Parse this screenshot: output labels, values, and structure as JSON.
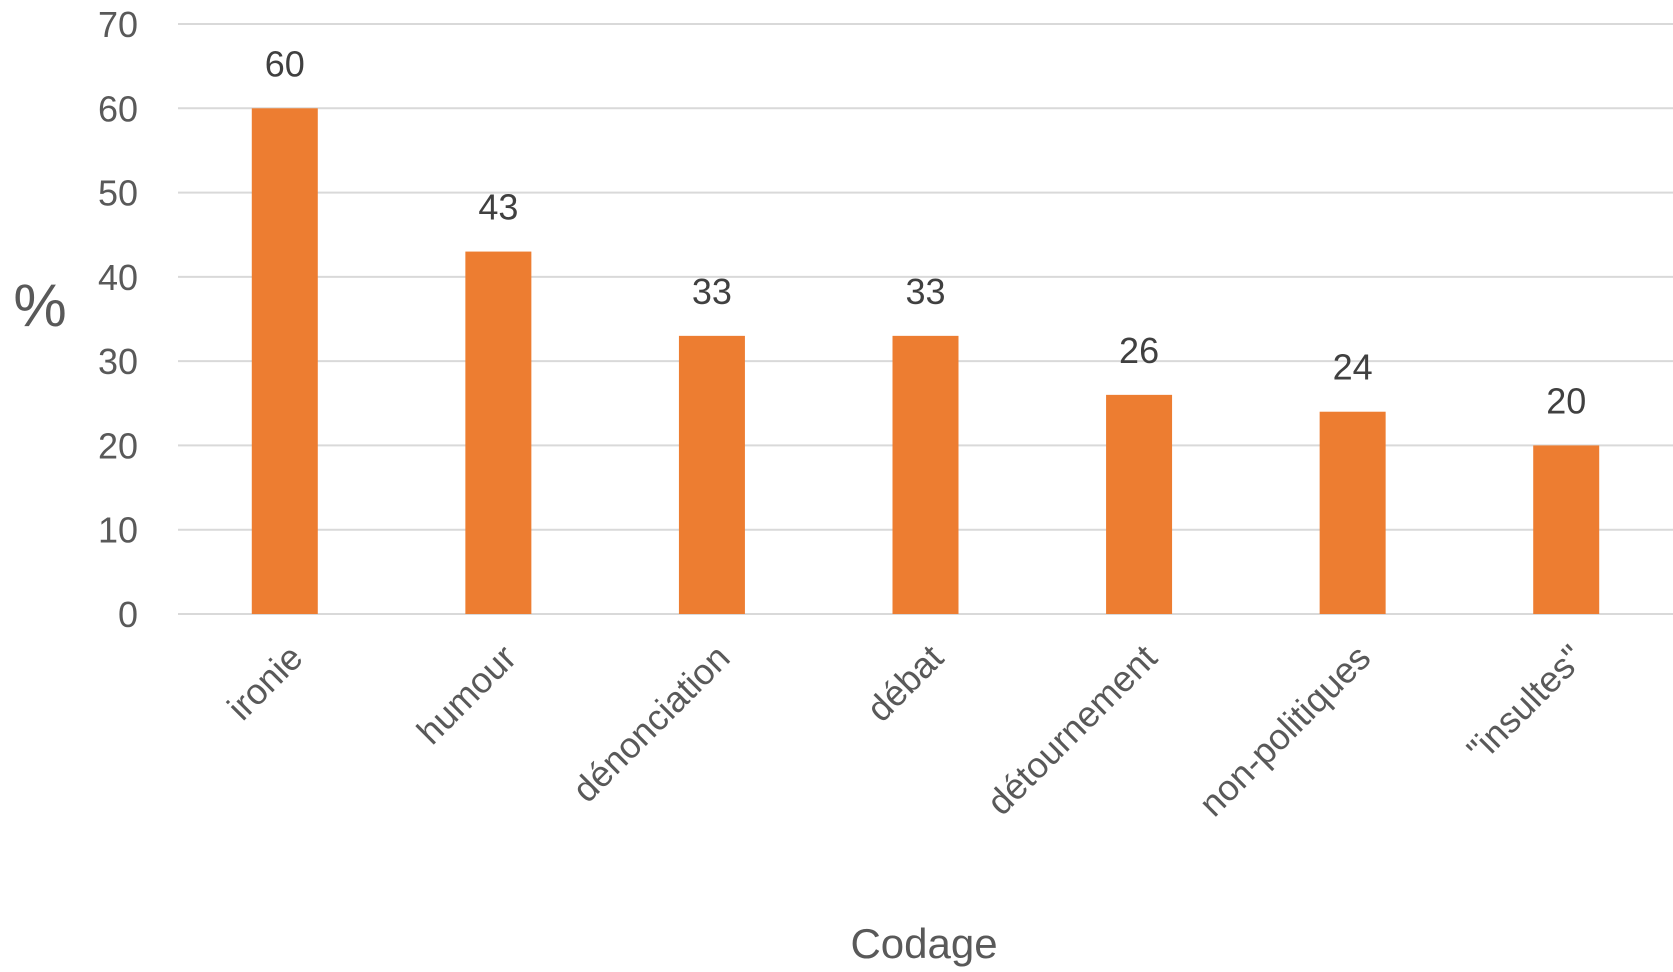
{
  "chart_data": {
    "type": "bar",
    "categories": [
      "ironie",
      "humour",
      "dénonciation",
      "débat",
      "détournement",
      "non-politiques",
      "\"insultes\""
    ],
    "values": [
      60,
      43,
      33,
      33,
      26,
      24,
      20
    ],
    "title": "",
    "xlabel": "Codage",
    "ylabel": "%",
    "ylim": [
      0,
      70
    ],
    "yticks": [
      0,
      10,
      20,
      30,
      40,
      50,
      60,
      70
    ],
    "grid": true,
    "legend": "none",
    "data_labels": true,
    "colors": {
      "bar": "#ED7D31",
      "grid": "#D9D9D9",
      "text": "#595959"
    }
  }
}
